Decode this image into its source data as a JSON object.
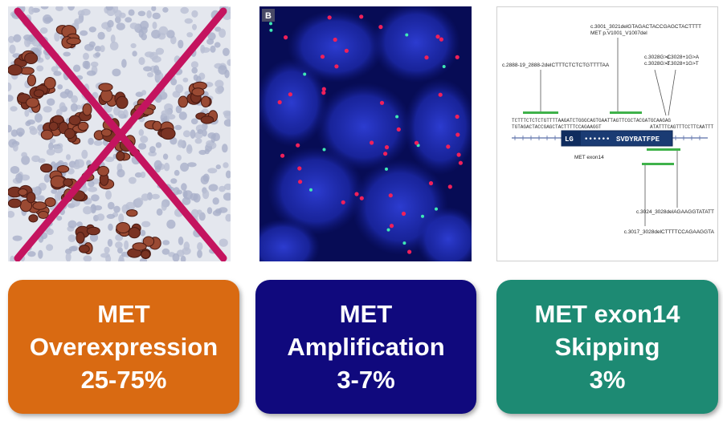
{
  "panels": {
    "ihc": {
      "icon": "cross-out-mark",
      "mark_color": "#c4145f"
    },
    "fish": {
      "label": "B",
      "signal_colors": {
        "red": "#f0205a",
        "green": "#3fe9b4"
      }
    },
    "splice": {
      "exon_label": "MET exon14",
      "exon_left": "LG",
      "exon_dots": "••••••",
      "exon_right": "SVDYRATFPE",
      "top_variant": "c.3001_3021delGTAGACTACCGAGCTACTTTT",
      "top_protein": "MET p.V1001_V1007del",
      "left_variant": "c.2888-19_2888-2delCTTTCTCTCTGTTTTAA",
      "right_v1": "c.3028G>C",
      "right_v2": "c.3028G>T",
      "right_v3": "c.3028+1G>A",
      "right_v4": "c.3028+1G>T",
      "bottom_v1": "c.3024_3028delAGAAGGTATATT",
      "bottom_v2": "c.3017_3028delCTTTTCCAGAAGGTA",
      "seq_left": "TCTTTCTCTCTGTTTTAAGATCTGGGCAGTGAATTAGTTCGCTACGATGCAAGAG",
      "seq_mid": "TGTAGACTACCGAGCTACTTTTCCAGAAGGT",
      "seq_right": "ATATTTCAGTTTCCTTCAATTT"
    }
  },
  "cards": [
    {
      "line1": "MET",
      "line2": "Overexpression",
      "line3": "25-75%",
      "color": "#d96a12"
    },
    {
      "line1": "MET",
      "line2": "Amplification",
      "line3": "3-7%",
      "color": "#10097d"
    },
    {
      "line1": "MET exon14",
      "line2": "Skipping",
      "line3": "3%",
      "color": "#1d8a73"
    }
  ]
}
